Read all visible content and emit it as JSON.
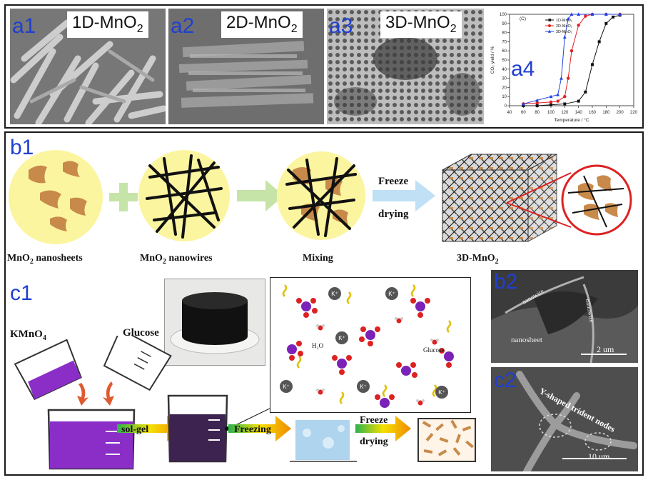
{
  "panel_a": {
    "a1": {
      "tag": "a1",
      "label": "1D-MnO",
      "sub": "2"
    },
    "a2": {
      "tag": "a2",
      "label": "2D-MnO",
      "sub": "2"
    },
    "a3": {
      "tag": "a3",
      "label": "3D-MnO",
      "sub": "2"
    },
    "a4": {
      "tag": "a4"
    }
  },
  "chart_data": {
    "type": "line",
    "panel_letter": "(C)",
    "xlabel": "Temperature / °C",
    "ylabel": "CO₂ yield / %",
    "xlim": [
      40,
      220
    ],
    "ylim": [
      0,
      100
    ],
    "xticks": [
      40,
      60,
      80,
      100,
      120,
      140,
      160,
      180,
      200,
      220
    ],
    "yticks": [
      0,
      10,
      20,
      30,
      40,
      50,
      60,
      70,
      80,
      90,
      100
    ],
    "series": [
      {
        "name": "1D-MnO₂",
        "color": "#111111",
        "marker": "square",
        "x": [
          60,
          80,
          100,
          120,
          140,
          150,
          160,
          170,
          180,
          190,
          200
        ],
        "y": [
          0,
          0,
          1,
          2,
          5,
          15,
          45,
          70,
          90,
          97,
          99
        ]
      },
      {
        "name": "2D-MnO₂",
        "color": "#e02020",
        "marker": "circle",
        "x": [
          60,
          80,
          100,
          110,
          120,
          125,
          130,
          140,
          150,
          160,
          180,
          200
        ],
        "y": [
          2,
          3,
          4,
          5,
          10,
          30,
          60,
          88,
          98,
          100,
          100,
          100
        ]
      },
      {
        "name": "3D-MnO₂",
        "color": "#2040e0",
        "marker": "triangle",
        "x": [
          60,
          80,
          100,
          110,
          115,
          120,
          125,
          130,
          140,
          160,
          180,
          200
        ],
        "y": [
          2,
          6,
          10,
          12,
          30,
          75,
          95,
          100,
          100,
          100,
          100,
          100
        ]
      }
    ]
  },
  "panel_b1": {
    "tag": "b1",
    "nanosheets_label": "MnO",
    "nanosheets_sub": "2",
    "nanosheets_tail": " nanosheets",
    "nanowires_label": "MnO",
    "nanowires_sub": "2",
    "nanowires_tail": " nanowires",
    "mixing_label": "Mixing",
    "freeze_label": "Freeze",
    "drying_label": "drying",
    "result_label": "3D-MnO",
    "result_sub": "2"
  },
  "panel_b2": {
    "tag": "b2",
    "nanowire1": "nanowire",
    "nanowire2": "nanowire",
    "nanosheet": "nanosheet",
    "scale": "2 um"
  },
  "panel_c2": {
    "tag": "c2",
    "annotation": "Y-shaped trident nodes",
    "scale": "10 um"
  },
  "panel_c1": {
    "tag": "c1",
    "kmno4": "KMnO",
    "kmno4_sub": "4",
    "glucose": "Glucose",
    "solgel": "sol-gel",
    "freezing": "Freezing",
    "freeze": "Freeze",
    "drying": "drying",
    "k_ion": "K⁺",
    "h2o": "H₂O",
    "glucose_inset": "Glucose"
  },
  "colors": {
    "tag_blue": "#1f3fd0",
    "flake": "#c88a4a",
    "purple": "#7b22b8",
    "circle_fill": "#fbf5a0"
  }
}
